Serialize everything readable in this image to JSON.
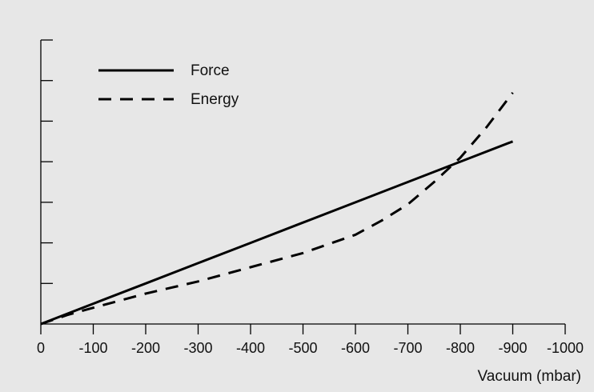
{
  "chart_data": {
    "type": "line",
    "title": "",
    "xlabel": "Vacuum (mbar)",
    "ylabel": "",
    "x_ticks": [
      0,
      -100,
      -200,
      -300,
      -400,
      -500,
      -600,
      -700,
      -800,
      -900,
      -1000
    ],
    "x_tick_labels": [
      "0",
      "-100",
      "-200",
      "-300",
      "-400",
      "-500",
      "-600",
      "-700",
      "-800",
      "-900",
      "-1000"
    ],
    "xlim": [
      0,
      -1000
    ],
    "ylim": [
      0,
      7
    ],
    "y_tick_count": 7,
    "y_tick_labels_shown": false,
    "grid": false,
    "legend_position": "top-left",
    "series": [
      {
        "name": "Force",
        "line_style": "solid",
        "color": "#000000",
        "x": [
          0,
          -100,
          -200,
          -300,
          -400,
          -500,
          -600,
          -700,
          -800,
          -900
        ],
        "y": [
          0,
          0.5,
          1.0,
          1.5,
          2.0,
          2.5,
          3.0,
          3.5,
          4.0,
          4.5
        ]
      },
      {
        "name": "Energy",
        "line_style": "dashed",
        "color": "#000000",
        "x": [
          0,
          -50,
          -100,
          -200,
          -300,
          -400,
          -500,
          -600,
          -650,
          -700,
          -750,
          -800,
          -850,
          -900
        ],
        "y": [
          0,
          0.22,
          0.4,
          0.75,
          1.05,
          1.4,
          1.75,
          2.2,
          2.55,
          2.95,
          3.5,
          4.1,
          4.85,
          5.7
        ]
      }
    ]
  }
}
